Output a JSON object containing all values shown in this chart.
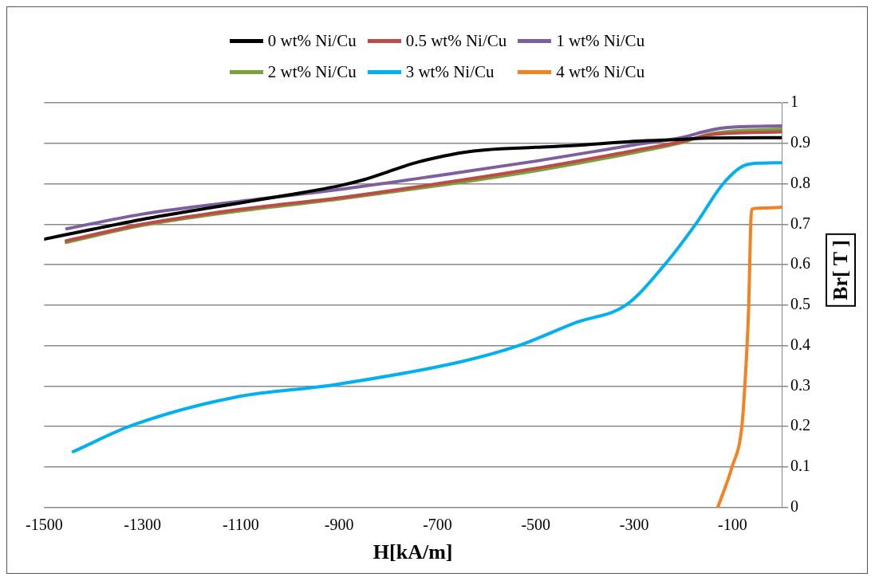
{
  "chart_data": {
    "type": "line",
    "xlabel": "H[kA/m]",
    "ylabel": "Br[ T ]",
    "xlim": [
      -1500,
      0
    ],
    "xticks": [
      -1500,
      -1300,
      -1100,
      -900,
      -700,
      -500,
      -300,
      -100
    ],
    "ylim": [
      0,
      1
    ],
    "yticks": [
      0,
      0.1,
      0.2,
      0.3,
      0.4,
      0.5,
      0.6,
      0.7,
      0.8,
      0.9,
      1
    ],
    "grid": "y",
    "legend": "top",
    "marker": "none",
    "line_style": "solid",
    "series": [
      {
        "name": "0 wt% Ni/Cu",
        "color": "#000000",
        "x": [
          -1500,
          -1400,
          -1300,
          -1200,
          -1100,
          -1000,
          -900,
          -850,
          -800,
          -750,
          -700,
          -650,
          -600,
          -500,
          -400,
          -300,
          -200,
          -150,
          0
        ],
        "values": [
          0.663,
          0.688,
          0.712,
          0.733,
          0.753,
          0.773,
          0.795,
          0.81,
          0.83,
          0.85,
          0.865,
          0.877,
          0.884,
          0.89,
          0.896,
          0.905,
          0.91,
          0.913,
          0.914
        ]
      },
      {
        "name": "0.5 wt% Ni/Cu",
        "color": "#be4b48",
        "x": [
          -1455,
          -1300,
          -1100,
          -900,
          -700,
          -500,
          -300,
          -200,
          -150,
          -100,
          0
        ],
        "values": [
          0.659,
          0.7,
          0.737,
          0.765,
          0.8,
          0.838,
          0.882,
          0.905,
          0.92,
          0.925,
          0.928
        ]
      },
      {
        "name": "1 wt% Ni/Cu",
        "color": "#7d5fa0",
        "x": [
          -1454,
          -1300,
          -1100,
          -900,
          -700,
          -500,
          -300,
          -200,
          -170,
          -130,
          -80,
          0
        ],
        "values": [
          0.689,
          0.725,
          0.757,
          0.786,
          0.82,
          0.856,
          0.896,
          0.915,
          0.925,
          0.936,
          0.941,
          0.943
        ]
      },
      {
        "name": "2 wt% Ni/Cu",
        "color": "#77a33c",
        "x": [
          -1455,
          -1300,
          -1100,
          -900,
          -700,
          -500,
          -300,
          -200,
          -150,
          -100,
          0
        ],
        "values": [
          0.655,
          0.697,
          0.733,
          0.762,
          0.795,
          0.832,
          0.877,
          0.903,
          0.922,
          0.93,
          0.935
        ]
      },
      {
        "name": "3 wt% Ni/Cu",
        "color": "#00b0f0",
        "x": [
          -1441,
          -1319,
          -1110,
          -912,
          -653,
          -535,
          -416,
          -317,
          -238,
          -175,
          -119,
          -76,
          -40,
          0
        ],
        "values": [
          0.138,
          0.204,
          0.273,
          0.303,
          0.36,
          0.4,
          0.458,
          0.5,
          0.6,
          0.7,
          0.8,
          0.845,
          0.851,
          0.852
        ]
      },
      {
        "name": "4 wt% Ni/Cu",
        "color": "#f58220",
        "x": [
          -130,
          -101,
          -81,
          -75,
          -67,
          -65,
          -63,
          -61,
          -40,
          0
        ],
        "values": [
          0,
          0.1,
          0.2,
          0.3,
          0.5,
          0.6,
          0.7,
          0.737,
          0.74,
          0.742
        ]
      }
    ]
  }
}
